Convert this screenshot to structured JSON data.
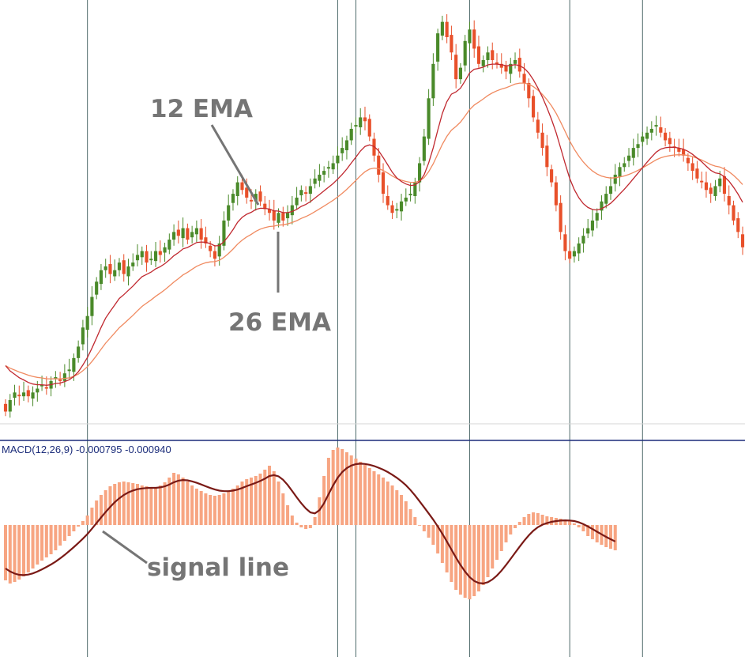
{
  "chart_data": {
    "type": "candlestick",
    "indicator": {
      "label": "MACD(12,26,9)",
      "values": [
        "-0.000795",
        "-0.000940"
      ]
    },
    "annotations": [
      {
        "text": "12 EMA",
        "target": "12 EMA line"
      },
      {
        "text": "26 EMA",
        "target": "26 EMA line"
      },
      {
        "text": "signal line",
        "target": "MACD signal line"
      }
    ],
    "colors": {
      "bull_candle": "#4a8a2a",
      "bear_candle": "#e8502a",
      "ema12": "#c0282f",
      "ema26": "#f08a60",
      "histogram": "#f7a582",
      "signal": "#7a1a16",
      "separator": "#1b2c7a",
      "vertical_lines": "#4d6a6a"
    },
    "price_close": [
      0.88,
      0.91,
      0.93,
      0.92,
      0.93,
      0.92,
      0.93,
      0.94,
      0.95,
      0.94,
      0.96,
      0.97,
      0.96,
      0.98,
      0.99,
      1.02,
      1.05,
      1.1,
      1.13,
      1.18,
      1.22,
      1.25,
      1.26,
      1.24,
      1.25,
      1.27,
      1.24,
      1.26,
      1.27,
      1.29,
      1.3,
      1.27,
      1.28,
      1.3,
      1.29,
      1.31,
      1.33,
      1.35,
      1.34,
      1.36,
      1.33,
      1.35,
      1.36,
      1.33,
      1.32,
      1.3,
      1.28,
      1.32,
      1.38,
      1.42,
      1.45,
      1.48,
      1.46,
      1.44,
      1.43,
      1.45,
      1.43,
      1.41,
      1.4,
      1.38,
      1.4,
      1.38,
      1.4,
      1.42,
      1.44,
      1.46,
      1.45,
      1.47,
      1.49,
      1.5,
      1.51,
      1.52,
      1.53,
      1.55,
      1.57,
      1.59,
      1.62,
      1.63,
      1.65,
      1.64,
      1.6,
      1.55,
      1.5,
      1.45,
      1.42,
      1.4,
      1.41,
      1.43,
      1.44,
      1.45,
      1.48,
      1.53,
      1.6,
      1.7,
      1.79,
      1.87,
      1.9,
      1.86,
      1.82,
      1.75,
      1.78,
      1.85,
      1.88,
      1.83,
      1.79,
      1.8,
      1.82,
      1.8,
      1.79,
      1.78,
      1.77,
      1.79,
      1.8,
      1.77,
      1.74,
      1.7,
      1.65,
      1.61,
      1.57,
      1.52,
      1.48,
      1.42,
      1.35,
      1.3,
      1.28,
      1.3,
      1.32,
      1.34,
      1.36,
      1.38,
      1.4,
      1.43,
      1.45,
      1.47,
      1.5,
      1.52,
      1.53,
      1.55,
      1.57,
      1.58,
      1.6,
      1.61,
      1.62,
      1.63,
      1.61,
      1.59,
      1.58,
      1.57,
      1.56,
      1.55,
      1.53,
      1.51,
      1.49,
      1.48,
      1.46,
      1.45,
      1.47,
      1.49,
      1.45,
      1.42,
      1.38,
      1.35,
      1.31
    ],
    "macd_hist": [
      -0.7,
      -0.74,
      -0.72,
      -0.69,
      -0.65,
      -0.6,
      -0.55,
      -0.5,
      -0.45,
      -0.41,
      -0.37,
      -0.32,
      -0.26,
      -0.2,
      -0.14,
      -0.08,
      -0.02,
      0.05,
      0.12,
      0.22,
      0.31,
      0.38,
      0.44,
      0.49,
      0.52,
      0.54,
      0.55,
      0.54,
      0.53,
      0.52,
      0.5,
      0.49,
      0.48,
      0.47,
      0.5,
      0.54,
      0.6,
      0.66,
      0.64,
      0.6,
      0.55,
      0.5,
      0.46,
      0.43,
      0.4,
      0.38,
      0.37,
      0.38,
      0.4,
      0.43,
      0.46,
      0.5,
      0.55,
      0.58,
      0.6,
      0.62,
      0.65,
      0.7,
      0.75,
      0.68,
      0.55,
      0.4,
      0.25,
      0.12,
      0.03,
      -0.03,
      -0.05,
      -0.04,
      0.1,
      0.35,
      0.62,
      0.85,
      0.95,
      0.98,
      0.96,
      0.92,
      0.88,
      0.84,
      0.8,
      0.76,
      0.72,
      0.68,
      0.64,
      0.6,
      0.55,
      0.5,
      0.44,
      0.38,
      0.3,
      0.2,
      0.1,
      0.0,
      -0.08,
      -0.16,
      -0.25,
      -0.36,
      -0.48,
      -0.6,
      -0.72,
      -0.82,
      -0.88,
      -0.92,
      -0.94,
      -0.9,
      -0.84,
      -0.76,
      -0.66,
      -0.55,
      -0.44,
      -0.33,
      -0.22,
      -0.12,
      -0.04,
      0.04,
      0.1,
      0.14,
      0.16,
      0.15,
      0.13,
      0.11,
      0.1,
      0.09,
      0.08,
      0.07,
      0.05,
      0.02,
      -0.03,
      -0.08,
      -0.14,
      -0.18,
      -0.22,
      -0.25,
      -0.28,
      -0.3,
      -0.32
    ]
  }
}
